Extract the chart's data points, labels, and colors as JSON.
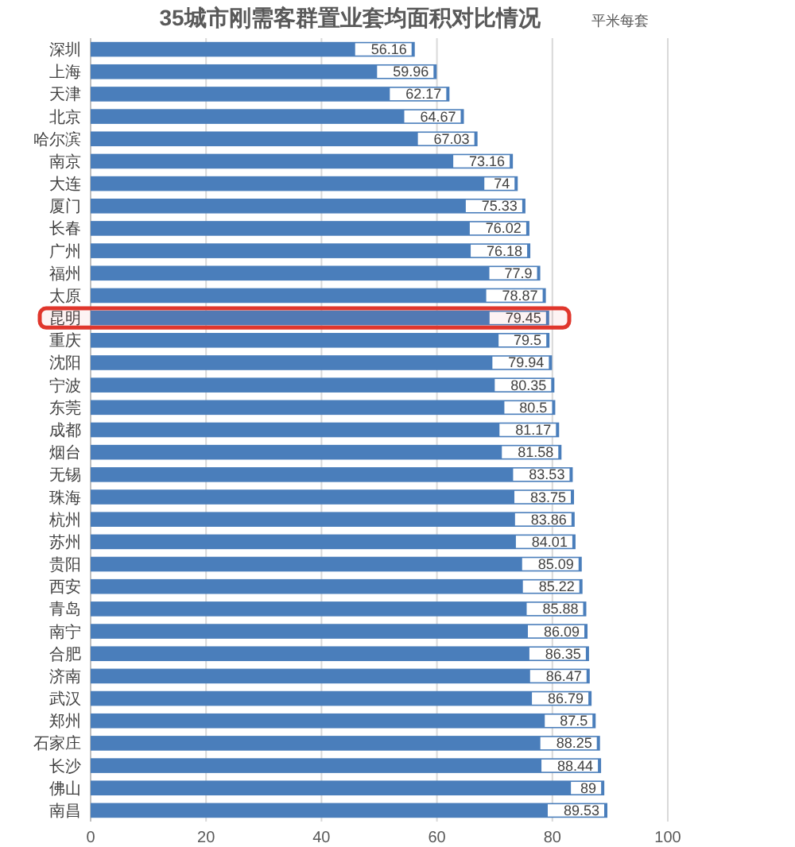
{
  "chart_data": {
    "type": "bar",
    "orientation": "horizontal",
    "title": "35城市刚需客群置业套均面积对比情况",
    "subtitle": "平米每套",
    "categories": [
      "深圳",
      "上海",
      "天津",
      "北京",
      "哈尔滨",
      "南京",
      "大连",
      "厦门",
      "长春",
      "广州",
      "福州",
      "太原",
      "昆明",
      "重庆",
      "沈阳",
      "宁波",
      "东莞",
      "成都",
      "烟台",
      "无锡",
      "珠海",
      "杭州",
      "苏州",
      "贵阳",
      "西安",
      "青岛",
      "南宁",
      "合肥",
      "济南",
      "武汉",
      "郑州",
      "石家庄",
      "长沙",
      "佛山",
      "南昌"
    ],
    "values": [
      56.16,
      59.96,
      62.17,
      64.67,
      67.03,
      73.16,
      74,
      75.33,
      76.02,
      76.18,
      77.9,
      78.87,
      79.45,
      79.5,
      79.94,
      80.35,
      80.5,
      81.17,
      81.58,
      83.53,
      83.75,
      83.86,
      84.01,
      85.09,
      85.22,
      85.88,
      86.09,
      86.35,
      86.47,
      86.79,
      87.5,
      88.25,
      88.44,
      89,
      89.53
    ],
    "color": "#4a7ebb",
    "data_labels": true,
    "xlim": [
      0,
      100
    ],
    "xticks": [
      0,
      20,
      40,
      60,
      80,
      100
    ],
    "grid": "x",
    "bands": [
      {
        "axis": "y",
        "from": "昆明",
        "to": "昆明",
        "color": "#e0362c"
      }
    ]
  }
}
